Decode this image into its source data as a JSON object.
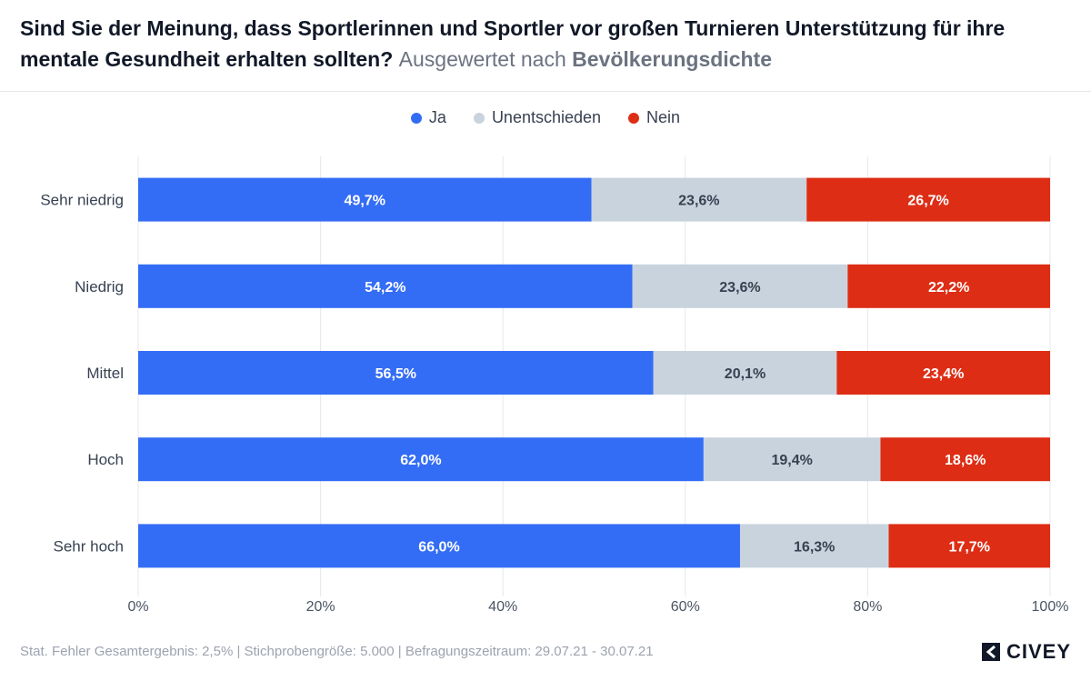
{
  "header": {
    "title": "Sind Sie der Meinung, dass Sportlerinnen und Sportler vor großen Turnieren Unterstützung für ihre mentale Gesundheit erhalten sollten?",
    "subtitle_prefix": "Ausgewertet nach",
    "subtitle_dimension": "Bevölkerungsdichte"
  },
  "legend": {
    "items": [
      {
        "label": "Ja",
        "color": "#346df5"
      },
      {
        "label": "Unentschieden",
        "color": "#c8d3dd"
      },
      {
        "label": "Nein",
        "color": "#de2d15"
      }
    ]
  },
  "chart_data": {
    "type": "bar",
    "orientation": "horizontal",
    "stacked": true,
    "categories": [
      "Sehr niedrig",
      "Niedrig",
      "Mittel",
      "Hoch",
      "Sehr hoch"
    ],
    "series": [
      {
        "name": "Ja",
        "color": "#346df5",
        "label_color": "#ffffff",
        "values": [
          49.7,
          54.2,
          56.5,
          62.0,
          66.0
        ],
        "labels": [
          "49,7%",
          "54,2%",
          "56,5%",
          "62,0%",
          "66,0%"
        ]
      },
      {
        "name": "Unentschieden",
        "color": "#c8d3dd",
        "label_color": "#374151",
        "values": [
          23.6,
          23.6,
          20.1,
          19.4,
          16.3
        ],
        "labels": [
          "23,6%",
          "23,6%",
          "20,1%",
          "19,4%",
          "16,3%"
        ]
      },
      {
        "name": "Nein",
        "color": "#de2d15",
        "label_color": "#ffffff",
        "values": [
          26.7,
          22.2,
          23.4,
          18.6,
          17.7
        ],
        "labels": [
          "26,7%",
          "22,2%",
          "23,4%",
          "18,6%",
          "17,7%"
        ]
      }
    ],
    "xlim": [
      0,
      100
    ],
    "xticks": [
      0,
      20,
      40,
      60,
      80,
      100
    ],
    "xtick_labels": [
      "0%",
      "20%",
      "40%",
      "60%",
      "80%",
      "100%"
    ],
    "grid": true,
    "legend_position": "top-center"
  },
  "footer": {
    "text": "Stat. Fehler Gesamtergebnis: 2,5% | Stichprobengröße: 5.000 | Befragungszeitraum: 29.07.21 - 30.07.21"
  },
  "logo": {
    "text": "CIVEY"
  }
}
